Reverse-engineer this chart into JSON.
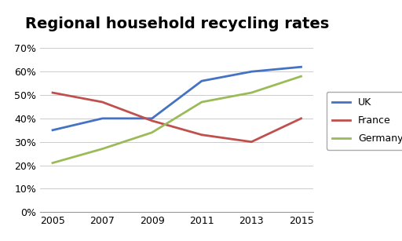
{
  "title": "Regional household recycling rates",
  "years": [
    2005,
    2007,
    2009,
    2011,
    2013,
    2015
  ],
  "uk": [
    35,
    40,
    40,
    56,
    60,
    62
  ],
  "france": [
    51,
    47,
    39,
    33,
    30,
    40
  ],
  "germany": [
    21,
    27,
    34,
    47,
    51,
    58
  ],
  "uk_color": "#4472C4",
  "france_color": "#C0504D",
  "germany_color": "#9BBB59",
  "line_width": 2.0,
  "ylim": [
    0,
    70
  ],
  "yticks": [
    0,
    10,
    20,
    30,
    40,
    50,
    60,
    70
  ],
  "legend_labels": [
    "UK",
    "France",
    "Germany"
  ],
  "background_color": "#FFFFFF",
  "title_fontsize": 14,
  "tick_fontsize": 9,
  "legend_fontsize": 9
}
